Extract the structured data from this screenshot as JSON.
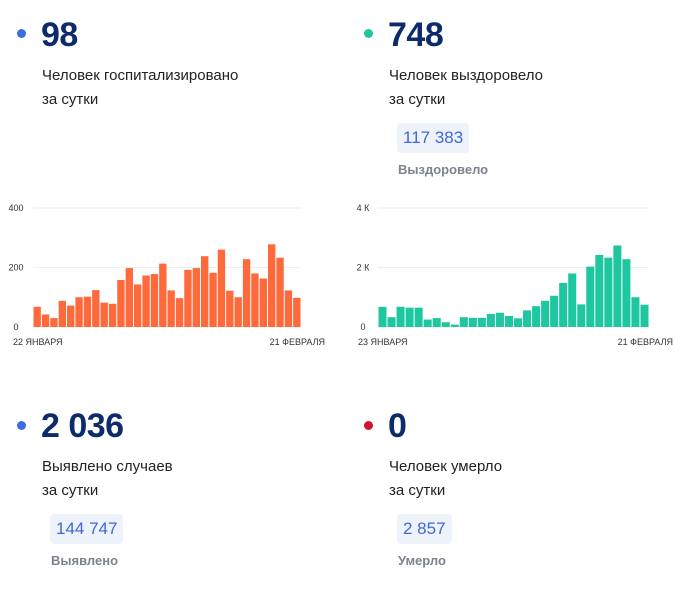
{
  "stats": {
    "hospitalized": {
      "value": "98",
      "line1": "Человек госпитализировано",
      "line2": "за сутки",
      "dot_color": "#3d6de0"
    },
    "recovered": {
      "value": "748",
      "line1": "Человек выздоровело",
      "line2": "за сутки",
      "total": "117 383",
      "total_label": "Выздоровело",
      "dot_color": "#1ec7a0"
    },
    "cases": {
      "value": "2 036",
      "line1": "Выявлено случаев",
      "line2": "за сутки",
      "total": "144 747",
      "total_label": "Выявлено",
      "dot_color": "#3d6de0"
    },
    "deaths": {
      "value": "0",
      "line1": "Человек умерло",
      "line2": "за сутки",
      "total": "2 857",
      "total_label": "Умерло",
      "dot_color": "#d0142a"
    }
  },
  "chart_data": [
    {
      "type": "bar",
      "color": "#ff6a3d",
      "grid": true,
      "ylim": [
        0,
        400
      ],
      "yticks": [
        "0",
        "200",
        "400"
      ],
      "x_start_label": "22 ЯНВАРЯ",
      "x_end_label": "21 ФЕВРАЛЯ",
      "values": [
        68,
        42,
        30,
        88,
        72,
        100,
        102,
        124,
        82,
        78,
        158,
        198,
        143,
        173,
        178,
        213,
        123,
        97,
        192,
        198,
        238,
        182,
        260,
        122,
        100,
        228,
        180,
        163,
        278,
        233,
        123,
        98
      ]
    },
    {
      "type": "bar",
      "color": "#1ec7a0",
      "grid": true,
      "ylim": [
        0,
        4000
      ],
      "yticks": [
        "0",
        "2 К",
        "4 К"
      ],
      "x_start_label": "23 ЯНВАРЯ",
      "x_end_label": "21 ФЕВРАЛЯ",
      "values": [
        680,
        330,
        680,
        650,
        650,
        250,
        300,
        160,
        80,
        330,
        310,
        310,
        440,
        480,
        370,
        290,
        560,
        700,
        880,
        1050,
        1480,
        1800,
        760,
        2030,
        2420,
        2330,
        2740,
        2280,
        1000,
        748
      ]
    }
  ]
}
